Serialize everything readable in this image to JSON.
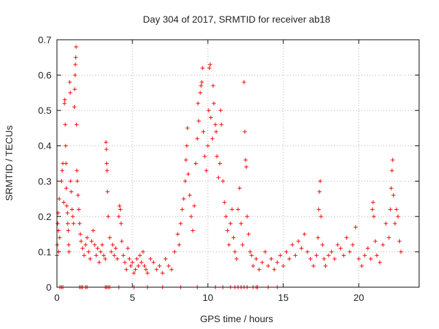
{
  "chart_data": {
    "type": "scatter",
    "title": "Day 304 of 2017, SRMTID for receiver ab18",
    "xlabel": "GPS time / hours",
    "ylabel": "SRMTID / TECUs",
    "xlim": [
      0,
      24
    ],
    "ylim": [
      0,
      0.7
    ],
    "xticks": [
      0,
      5,
      10,
      15,
      20
    ],
    "yticks": [
      0,
      0.1,
      0.2,
      0.3,
      0.4,
      0.5,
      0.6,
      0.7
    ],
    "grid": true,
    "marker": "plus",
    "color": "#ff0000",
    "series": [
      {
        "name": "SRMTID",
        "points": [
          [
            0.0,
            0.09
          ],
          [
            0.02,
            0.12
          ],
          [
            0.05,
            0.18
          ],
          [
            0.08,
            0.21
          ],
          [
            0.1,
            0.16
          ],
          [
            0.12,
            0.1
          ],
          [
            0.15,
            0.25
          ],
          [
            0.18,
            0.14
          ],
          [
            0.3,
            0.3
          ],
          [
            0.35,
            0.33
          ],
          [
            0.4,
            0.35
          ],
          [
            0.45,
            0.24
          ],
          [
            0.5,
            0.52
          ],
          [
            0.52,
            0.53
          ],
          [
            0.55,
            0.46
          ],
          [
            0.58,
            0.4
          ],
          [
            0.6,
            0.35
          ],
          [
            0.62,
            0.28
          ],
          [
            0.65,
            0.23
          ],
          [
            0.7,
            0.21
          ],
          [
            0.72,
            0.18
          ],
          [
            0.75,
            0.16
          ],
          [
            0.78,
            0.12
          ],
          [
            0.8,
            0.1
          ],
          [
            0.85,
            0.58
          ],
          [
            0.88,
            0.55
          ],
          [
            0.9,
            0.3
          ],
          [
            0.95,
            0.27
          ],
          [
            1.0,
            0.22
          ],
          [
            1.05,
            0.2
          ],
          [
            1.1,
            0.18
          ],
          [
            1.15,
            0.51
          ],
          [
            1.18,
            0.56
          ],
          [
            1.2,
            0.6
          ],
          [
            1.22,
            0.63
          ],
          [
            1.25,
            0.65
          ],
          [
            1.27,
            0.68
          ],
          [
            1.3,
            0.46
          ],
          [
            1.32,
            0.33
          ],
          [
            1.35,
            0.3
          ],
          [
            1.4,
            0.26
          ],
          [
            1.45,
            0.22
          ],
          [
            1.5,
            0.18
          ],
          [
            1.55,
            0.15
          ],
          [
            1.6,
            0.13
          ],
          [
            1.7,
            0.11
          ],
          [
            1.8,
            0.09
          ],
          [
            1.9,
            0.12
          ],
          [
            2.0,
            0.14
          ],
          [
            2.1,
            0.1
          ],
          [
            2.2,
            0.08
          ],
          [
            2.3,
            0.13
          ],
          [
            2.4,
            0.16
          ],
          [
            2.5,
            0.12
          ],
          [
            2.6,
            0.09
          ],
          [
            2.7,
            0.11
          ],
          [
            2.8,
            0.07
          ],
          [
            2.9,
            0.1
          ],
          [
            3.0,
            0.12
          ],
          [
            3.1,
            0.09
          ],
          [
            3.2,
            0.08
          ],
          [
            3.25,
            0.41
          ],
          [
            3.28,
            0.39
          ],
          [
            3.3,
            0.35
          ],
          [
            3.32,
            0.33
          ],
          [
            3.35,
            0.27
          ],
          [
            3.4,
            0.2
          ],
          [
            3.5,
            0.14
          ],
          [
            3.6,
            0.1
          ],
          [
            3.7,
            0.12
          ],
          [
            3.8,
            0.09
          ],
          [
            3.9,
            0.11
          ],
          [
            4.0,
            0.08
          ],
          [
            4.1,
            0.2
          ],
          [
            4.15,
            0.23
          ],
          [
            4.2,
            0.22
          ],
          [
            4.25,
            0.18
          ],
          [
            4.3,
            0.13
          ],
          [
            4.4,
            0.09
          ],
          [
            4.5,
            0.07
          ],
          [
            4.6,
            0.05
          ],
          [
            4.7,
            0.11
          ],
          [
            4.8,
            0.08
          ],
          [
            4.9,
            0.06
          ],
          [
            5.0,
            0.07
          ],
          [
            5.1,
            0.04
          ],
          [
            5.2,
            0.05
          ],
          [
            5.3,
            0.08
          ],
          [
            5.4,
            0.06
          ],
          [
            5.5,
            0.09
          ],
          [
            5.6,
            0.07
          ],
          [
            5.7,
            0.1
          ],
          [
            5.8,
            0.06
          ],
          [
            5.9,
            0.05
          ],
          [
            6.0,
            0.04
          ],
          [
            6.2,
            0.08
          ],
          [
            6.4,
            0.07
          ],
          [
            6.6,
            0.05
          ],
          [
            6.8,
            0.06
          ],
          [
            7.0,
            0.04
          ],
          [
            7.2,
            0.08
          ],
          [
            7.4,
            0.06
          ],
          [
            7.6,
            0.05
          ],
          [
            7.8,
            0.1
          ],
          [
            8.0,
            0.15
          ],
          [
            8.1,
            0.12
          ],
          [
            8.2,
            0.18
          ],
          [
            8.3,
            0.22
          ],
          [
            8.4,
            0.25
          ],
          [
            8.5,
            0.3
          ],
          [
            8.55,
            0.36
          ],
          [
            8.6,
            0.4
          ],
          [
            8.65,
            0.45
          ],
          [
            8.7,
            0.32
          ],
          [
            8.8,
            0.26
          ],
          [
            8.9,
            0.2
          ],
          [
            9.0,
            0.16
          ],
          [
            9.1,
            0.23
          ],
          [
            9.2,
            0.35
          ],
          [
            9.3,
            0.42
          ],
          [
            9.35,
            0.52
          ],
          [
            9.4,
            0.47
          ],
          [
            9.5,
            0.55
          ],
          [
            9.55,
            0.57
          ],
          [
            9.6,
            0.58
          ],
          [
            9.65,
            0.62
          ],
          [
            9.7,
            0.44
          ],
          [
            9.8,
            0.37
          ],
          [
            9.9,
            0.33
          ],
          [
            10.0,
            0.4
          ],
          [
            10.05,
            0.5
          ],
          [
            10.1,
            0.62
          ],
          [
            10.15,
            0.63
          ],
          [
            10.2,
            0.48
          ],
          [
            10.3,
            0.42
          ],
          [
            10.35,
            0.57
          ],
          [
            10.4,
            0.52
          ],
          [
            10.5,
            0.46
          ],
          [
            10.55,
            0.44
          ],
          [
            10.6,
            0.37
          ],
          [
            10.7,
            0.31
          ],
          [
            10.8,
            0.35
          ],
          [
            10.85,
            0.5
          ],
          [
            10.9,
            0.46
          ],
          [
            11.0,
            0.3
          ],
          [
            11.1,
            0.24
          ],
          [
            11.2,
            0.2
          ],
          [
            11.3,
            0.16
          ],
          [
            11.4,
            0.12
          ],
          [
            11.5,
            0.18
          ],
          [
            11.6,
            0.22
          ],
          [
            11.7,
            0.14
          ],
          [
            11.8,
            0.1
          ],
          [
            11.9,
            0.08
          ],
          [
            12.0,
            0.22
          ],
          [
            12.1,
            0.28
          ],
          [
            12.2,
            0.18
          ],
          [
            12.3,
            0.12
          ],
          [
            12.4,
            0.58
          ],
          [
            12.45,
            0.44
          ],
          [
            12.5,
            0.36
          ],
          [
            12.55,
            0.34
          ],
          [
            12.6,
            0.2
          ],
          [
            12.7,
            0.15
          ],
          [
            12.8,
            0.1
          ],
          [
            12.9,
            0.09
          ],
          [
            13.0,
            0.06
          ],
          [
            13.2,
            0.08
          ],
          [
            13.4,
            0.05
          ],
          [
            13.6,
            0.07
          ],
          [
            13.8,
            0.1
          ],
          [
            14.0,
            0.06
          ],
          [
            14.2,
            0.08
          ],
          [
            14.4,
            0.05
          ],
          [
            14.6,
            0.07
          ],
          [
            14.8,
            0.09
          ],
          [
            15.0,
            0.06
          ],
          [
            15.2,
            0.1
          ],
          [
            15.4,
            0.08
          ],
          [
            15.6,
            0.12
          ],
          [
            15.8,
            0.09
          ],
          [
            16.0,
            0.13
          ],
          [
            16.2,
            0.11
          ],
          [
            16.4,
            0.15
          ],
          [
            16.6,
            0.1
          ],
          [
            16.8,
            0.08
          ],
          [
            17.0,
            0.06
          ],
          [
            17.2,
            0.09
          ],
          [
            17.3,
            0.14
          ],
          [
            17.35,
            0.22
          ],
          [
            17.4,
            0.27
          ],
          [
            17.45,
            0.3
          ],
          [
            17.5,
            0.2
          ],
          [
            17.6,
            0.12
          ],
          [
            17.7,
            0.08
          ],
          [
            17.8,
            0.06
          ],
          [
            18.0,
            0.09
          ],
          [
            18.2,
            0.1
          ],
          [
            18.4,
            0.08
          ],
          [
            18.6,
            0.12
          ],
          [
            18.8,
            0.11
          ],
          [
            19.0,
            0.09
          ],
          [
            19.2,
            0.14
          ],
          [
            19.4,
            0.1
          ],
          [
            19.6,
            0.12
          ],
          [
            19.8,
            0.17
          ],
          [
            20.0,
            0.08
          ],
          [
            20.2,
            0.06
          ],
          [
            20.4,
            0.09
          ],
          [
            20.6,
            0.11
          ],
          [
            20.8,
            0.08
          ],
          [
            20.9,
            0.22
          ],
          [
            20.95,
            0.24
          ],
          [
            21.0,
            0.2
          ],
          [
            21.1,
            0.13
          ],
          [
            21.2,
            0.09
          ],
          [
            21.4,
            0.07
          ],
          [
            21.6,
            0.12
          ],
          [
            21.8,
            0.18
          ],
          [
            22.0,
            0.14
          ],
          [
            22.1,
            0.22
          ],
          [
            22.15,
            0.28
          ],
          [
            22.2,
            0.33
          ],
          [
            22.25,
            0.36
          ],
          [
            22.3,
            0.26
          ],
          [
            22.4,
            0.18
          ],
          [
            22.5,
            0.22
          ],
          [
            22.6,
            0.2
          ],
          [
            22.7,
            0.13
          ],
          [
            22.8,
            0.1
          ]
        ]
      }
    ],
    "zero_points_x": [
      0.2,
      0.3,
      0.4,
      1.5,
      1.6,
      1.7,
      1.9,
      2.0,
      3.2,
      3.3,
      3.4,
      3.5,
      4.1,
      5.1,
      6.0,
      7.0,
      8.2,
      9.3,
      10.5,
      11.0,
      11.5,
      11.8,
      12.0,
      12.2,
      12.4,
      12.6,
      13.0,
      13.2,
      13.3,
      14.0,
      14.6
    ]
  }
}
